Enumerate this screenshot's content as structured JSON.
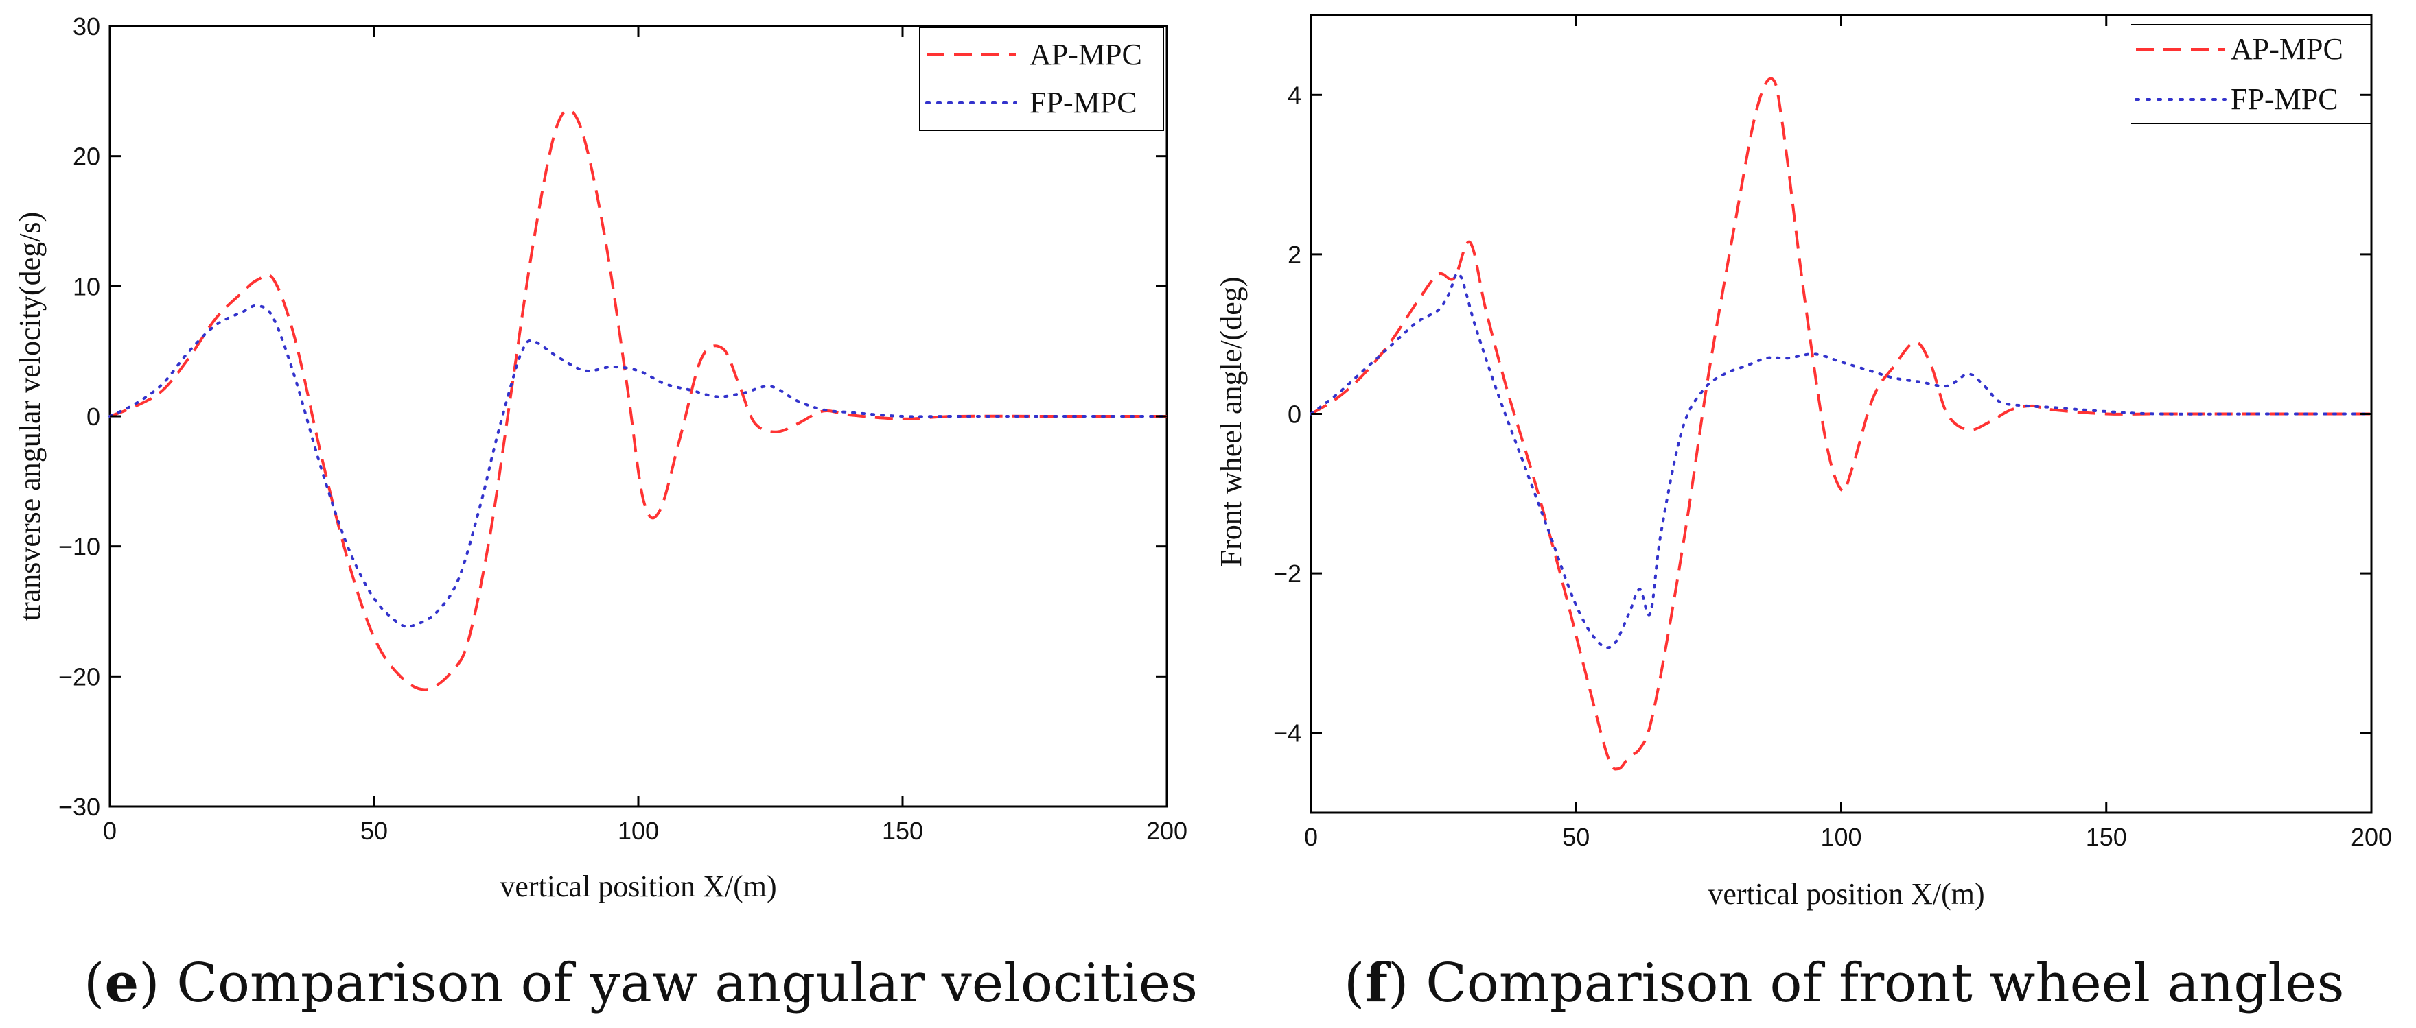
{
  "colors": {
    "ap": "#ff3333",
    "fp": "#3333cc"
  },
  "panels": [
    {
      "id": "e",
      "caption_letter": "e",
      "caption_rest": ") Comparison of yaw angular velocities",
      "chart_data": {
        "type": "line",
        "xlabel": "vertical position X/(m)",
        "ylabel": "transverse angular velocity(deg/s)",
        "xlim": [
          0,
          200
        ],
        "ylim": [
          -30,
          30
        ],
        "xticks": [
          0,
          50,
          100,
          150,
          200
        ],
        "yticks": [
          -30,
          -20,
          -10,
          0,
          10,
          20,
          30
        ],
        "legend": "top-right",
        "grid": false,
        "series": [
          {
            "name": "AP-MPC",
            "style": "dashed",
            "x": [
              0,
              5,
              10,
              15,
              20,
              25,
              28,
              31,
              35,
              40,
              45,
              50,
              55,
              60,
              65,
              68,
              72,
              76,
              80,
              84,
              87,
              90,
              94,
              98,
              101,
              104,
              108,
              112,
              116,
              119,
              122,
              126,
              130,
              135,
              140,
              150,
              160,
              180,
              200
            ],
            "y": [
              0,
              0.8,
              2,
              4.5,
              7.5,
              9.5,
              10.5,
              10.5,
              6,
              -3,
              -11,
              -17,
              -20,
              -21,
              -19.5,
              -17,
              -9,
              2,
              13,
              21.5,
              23.5,
              21,
              13,
              2,
              -6.5,
              -7.3,
              -1.5,
              4.5,
              5.2,
              2.5,
              -0.5,
              -1.2,
              -0.6,
              0.4,
              0.1,
              -0.2,
              0,
              0,
              0
            ]
          },
          {
            "name": "FP-MPC",
            "style": "dotted",
            "x": [
              0,
              5,
              10,
              15,
              20,
              25,
              28,
              31,
              35,
              40,
              45,
              50,
              55,
              58,
              62,
              66,
              70,
              73,
              76,
              78,
              80,
              85,
              90,
              95,
              100,
              105,
              110,
              115,
              120,
              125,
              130,
              135,
              140,
              150,
              160,
              180,
              200
            ],
            "y": [
              0,
              1,
              2.5,
              5,
              7,
              8,
              8.5,
              7.5,
              3,
              -4,
              -10,
              -14,
              -16,
              -16,
              -15,
              -12.5,
              -7,
              -2,
              2.5,
              5,
              5.8,
              4.5,
              3.5,
              3.8,
              3.5,
              2.5,
              2,
              1.5,
              1.8,
              2.3,
              1.2,
              0.5,
              0.3,
              0,
              0,
              0,
              0
            ]
          }
        ]
      }
    },
    {
      "id": "f",
      "caption_letter": "f",
      "caption_rest": ") Comparison of front wheel angles",
      "chart_data": {
        "type": "line",
        "xlabel": "vertical position X/(m)",
        "ylabel": "Front wheel angle/(deg)",
        "xlim": [
          0,
          200
        ],
        "ylim": [
          -5,
          5
        ],
        "xticks": [
          0,
          50,
          100,
          150,
          200
        ],
        "yticks": [
          -4,
          -2,
          0,
          2,
          4
        ],
        "legend": "top-right",
        "grid": false,
        "series": [
          {
            "name": "AP-MPC",
            "style": "dashed",
            "x": [
              0,
              5,
              10,
              15,
              20,
              24,
              27,
              30,
              33,
              37,
              42,
              47,
              52,
              56,
              58,
              60,
              62,
              64,
              67,
              71,
              75,
              80,
              84,
              87,
              89,
              93,
              97,
              100,
              102,
              106,
              110,
              114,
              117,
              120,
              124,
              128,
              132,
              136,
              140,
              150,
              160,
              180,
              200
            ],
            "y": [
              0,
              0.2,
              0.5,
              0.9,
              1.4,
              1.75,
              1.7,
              2.15,
              1.3,
              0.3,
              -0.8,
              -2,
              -3.3,
              -4.3,
              -4.45,
              -4.3,
              -4.2,
              -3.9,
              -2.9,
              -1.3,
              0.5,
              2.4,
              3.8,
              4.2,
              3.6,
              1.5,
              -0.3,
              -0.95,
              -0.7,
              0.2,
              0.6,
              0.9,
              0.6,
              0,
              -0.2,
              -0.1,
              0.05,
              0.1,
              0.05,
              0,
              0,
              0,
              0
            ]
          },
          {
            "name": "FP-MPC",
            "style": "dotted",
            "x": [
              0,
              5,
              10,
              15,
              20,
              24,
              26,
              28,
              31,
              35,
              40,
              45,
              50,
              54,
              57,
              60,
              62,
              64,
              66,
              70,
              74,
              78,
              82,
              86,
              90,
              95,
              100,
              105,
              110,
              115,
              120,
              124,
              127,
              130,
              135,
              140,
              150,
              160,
              180,
              200
            ],
            "y": [
              0,
              0.25,
              0.55,
              0.85,
              1.15,
              1.3,
              1.5,
              1.75,
              1.1,
              0.3,
              -0.6,
              -1.5,
              -2.4,
              -2.85,
              -2.9,
              -2.5,
              -2.2,
              -2.5,
              -1.5,
              -0.2,
              0.3,
              0.5,
              0.6,
              0.7,
              0.7,
              0.75,
              0.65,
              0.55,
              0.45,
              0.4,
              0.35,
              0.5,
              0.35,
              0.15,
              0.1,
              0.08,
              0.03,
              0,
              0,
              0
            ]
          }
        ]
      }
    }
  ]
}
